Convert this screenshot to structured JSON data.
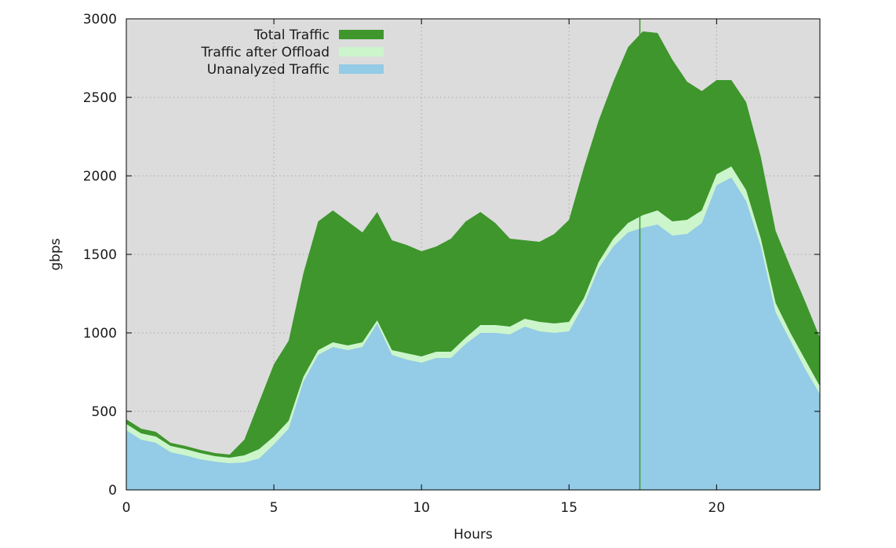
{
  "chart_data": {
    "type": "area",
    "xlabel": "Hours",
    "ylabel": "gbps",
    "xlim": [
      0,
      23.5
    ],
    "ylim": [
      0,
      3000
    ],
    "x_ticks": [
      0,
      5,
      10,
      15,
      20
    ],
    "y_ticks": [
      0,
      500,
      1000,
      1500,
      2000,
      2500,
      3000
    ],
    "grid": true,
    "legend_position": "top-left",
    "plot_background": "#dcdcdc",
    "marker_line": {
      "x": 17.4,
      "color": "#3e9a2c"
    },
    "x": [
      0,
      0.5,
      1,
      1.5,
      2,
      2.5,
      3,
      3.5,
      4,
      4.5,
      5,
      5.5,
      6,
      6.5,
      7,
      7.5,
      8,
      8.5,
      9,
      9.5,
      10,
      10.5,
      11,
      11.5,
      12,
      12.5,
      13,
      13.5,
      14,
      14.5,
      15,
      15.5,
      16,
      16.5,
      17,
      17.5,
      18,
      18.5,
      19,
      19.5,
      20,
      20.5,
      21,
      21.5,
      22,
      22.5,
      23,
      23.5
    ],
    "series": [
      {
        "name": "Total Traffic",
        "color": "#3e962c",
        "values": [
          450,
          390,
          370,
          300,
          280,
          255,
          235,
          225,
          320,
          560,
          800,
          950,
          1380,
          1710,
          1780,
          1710,
          1640,
          1770,
          1590,
          1560,
          1520,
          1550,
          1600,
          1710,
          1770,
          1700,
          1600,
          1590,
          1580,
          1630,
          1720,
          2050,
          2350,
          2600,
          2820,
          2920,
          2910,
          2740,
          2600,
          2540,
          2610,
          2610,
          2470,
          2120,
          1650,
          1420,
          1200,
          970
        ]
      },
      {
        "name": "Traffic after Offload",
        "color": "#ccf5cc",
        "values": [
          420,
          360,
          340,
          280,
          260,
          235,
          215,
          205,
          220,
          260,
          340,
          440,
          720,
          890,
          940,
          920,
          940,
          1080,
          890,
          870,
          850,
          880,
          880,
          970,
          1050,
          1050,
          1040,
          1090,
          1070,
          1060,
          1070,
          1220,
          1450,
          1600,
          1700,
          1750,
          1780,
          1710,
          1720,
          1780,
          2010,
          2060,
          1910,
          1600,
          1190,
          1000,
          830,
          660
        ]
      },
      {
        "name": "Unanalyzed Traffic",
        "color": "#94cbe6",
        "values": [
          380,
          320,
          300,
          240,
          220,
          195,
          180,
          170,
          175,
          200,
          290,
          390,
          690,
          860,
          910,
          890,
          910,
          1060,
          860,
          830,
          810,
          840,
          840,
          930,
          1000,
          1000,
          990,
          1040,
          1010,
          1000,
          1010,
          1180,
          1410,
          1550,
          1640,
          1670,
          1690,
          1620,
          1630,
          1700,
          1940,
          1990,
          1840,
          1550,
          1130,
          950,
          770,
          610
        ]
      }
    ]
  }
}
